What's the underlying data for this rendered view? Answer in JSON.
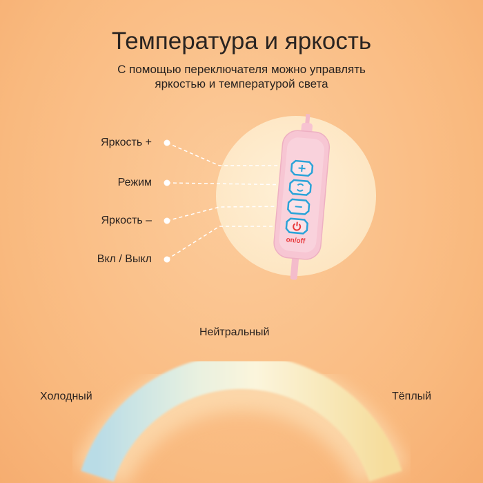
{
  "header": {
    "title": "Температура и яркость",
    "subtitle": "С помощью переключателя можно управлять яркостью и температурой света"
  },
  "controls": [
    {
      "label": "Яркость +",
      "icon": "plus-icon"
    },
    {
      "label": "Режим",
      "icon": "mode-cycle-icon"
    },
    {
      "label": "Яркость –",
      "icon": "minus-icon"
    },
    {
      "label": "Вкл / Выкл",
      "icon": "power-icon"
    }
  ],
  "remote": {
    "power_text": "on/off"
  },
  "temperatures": {
    "cold": "Холодный",
    "neutral": "Нейтральный",
    "warm": "Тёплый"
  },
  "colors": {
    "background": "#f9b97e",
    "button_outline": "#2aa3d8",
    "power": "#e8383a",
    "remote": "#f7c9d6"
  }
}
